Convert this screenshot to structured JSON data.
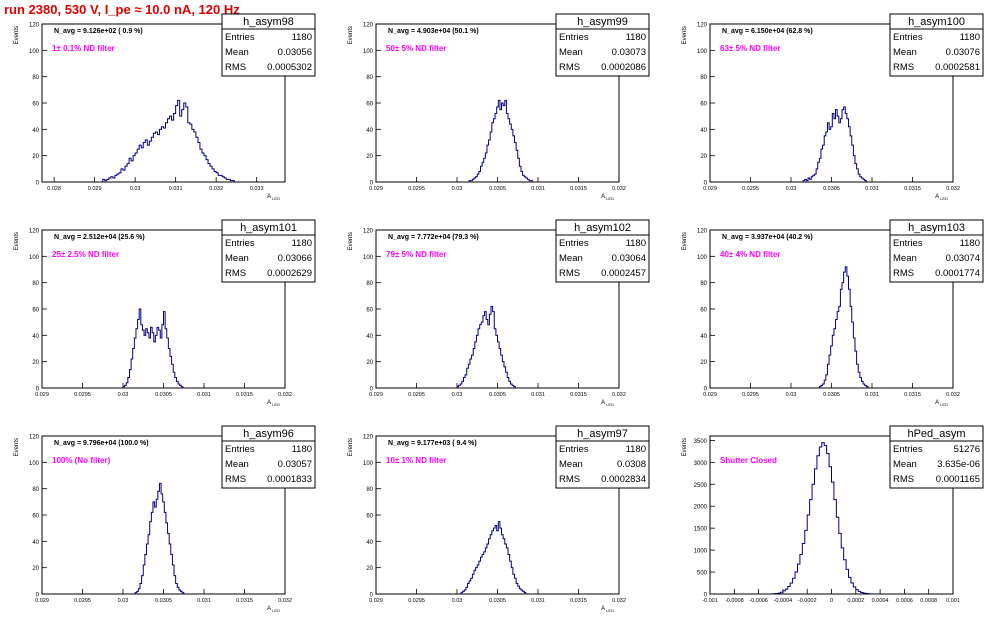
{
  "run_title": "run 2380,   530 V, I_pe ≈ 10.0 nA, 120 Hz",
  "chart_data": [
    {
      "type": "bar",
      "hist_name": "h_asym98",
      "stats": {
        "entries_label": "Entries",
        "entries": "1180",
        "mean_label": "Mean",
        "mean": "0.03056",
        "rms_label": "RMS",
        "rms": "0.0005302"
      },
      "navg": "N_avg = 9.126e+02 ( 0.9 %)",
      "filter": "1± 0.1% ND filter",
      "xlabel": "A_LED",
      "ylabel": "Events",
      "xlim": [
        0.0277,
        0.0337
      ],
      "ylim": [
        0,
        120
      ],
      "xticks": [
        0.028,
        0.029,
        0.03,
        0.031,
        0.032,
        0.033
      ],
      "xtick_labels": [
        "0.028",
        "0.029",
        "0.03",
        "0.031",
        "0.032",
        "0.033"
      ],
      "yticks": [
        0,
        20,
        40,
        60,
        80,
        100,
        120
      ],
      "bins": {
        "lo": 0.0292,
        "width": 5e-05,
        "values": [
          2,
          1,
          2,
          3,
          4,
          3,
          5,
          6,
          7,
          10,
          9,
          12,
          14,
          18,
          16,
          20,
          22,
          25,
          28,
          26,
          30,
          32,
          28,
          31,
          34,
          37,
          38,
          36,
          40,
          42,
          41,
          45,
          48,
          50,
          47,
          52,
          58,
          62,
          50,
          55,
          60,
          57,
          45,
          44,
          40,
          38,
          34,
          30,
          25,
          22,
          20,
          17,
          14,
          12,
          10,
          8,
          7,
          5,
          5,
          4,
          3,
          2,
          2,
          1,
          1
        ]
      }
    },
    {
      "type": "bar",
      "hist_name": "h_asym99",
      "stats": {
        "entries_label": "Entries",
        "entries": "1180",
        "mean_label": "Mean",
        "mean": "0.03073",
        "rms_label": "RMS",
        "rms": "0.0002086"
      },
      "navg": "N_avg = 4.903e+04 (50.1 %)",
      "filter": "50± 5% ND filter",
      "xlabel": "A_LED",
      "ylabel": "Events",
      "xlim": [
        0.029,
        0.032
      ],
      "ylim": [
        0,
        120
      ],
      "xticks": [
        0.029,
        0.0295,
        0.03,
        0.0305,
        0.031,
        0.0315,
        0.032
      ],
      "xtick_labels": [
        "0.029",
        "0.0295",
        "0.03",
        "0.0305",
        "0.031",
        "0.0315",
        "0.032"
      ],
      "yticks": [
        0,
        20,
        40,
        60,
        80,
        100,
        120
      ],
      "bins": {
        "lo": 0.03015,
        "width": 2e-05,
        "values": [
          1,
          1,
          2,
          3,
          4,
          6,
          8,
          12,
          15,
          18,
          22,
          28,
          32,
          38,
          45,
          48,
          52,
          57,
          62,
          55,
          60,
          58,
          62,
          52,
          48,
          44,
          40,
          35,
          30,
          24,
          18,
          12,
          8,
          5,
          4,
          3,
          2,
          1,
          1
        ]
      }
    },
    {
      "type": "bar",
      "hist_name": "h_asym100",
      "stats": {
        "entries_label": "Entries",
        "entries": "1180",
        "mean_label": "Mean",
        "mean": "0.03076",
        "rms_label": "RMS",
        "rms": "0.0002581"
      },
      "navg": "N_avg = 6.150e+04 (62.8 %)",
      "filter": "63± 5% ND filter",
      "xlabel": "A_LED",
      "ylabel": "Events",
      "xlim": [
        0.029,
        0.032
      ],
      "ylim": [
        0,
        120
      ],
      "xticks": [
        0.029,
        0.0295,
        0.03,
        0.0305,
        0.031,
        0.0315,
        0.032
      ],
      "xtick_labels": [
        "0.029",
        "0.0295",
        "0.03",
        "0.0305",
        "0.031",
        "0.0315",
        "0.032"
      ],
      "yticks": [
        0,
        20,
        40,
        60,
        80,
        100,
        120
      ],
      "bins": {
        "lo": 0.03015,
        "width": 2e-05,
        "values": [
          1,
          2,
          1,
          3,
          2,
          4,
          5,
          6,
          10,
          15,
          18,
          25,
          28,
          35,
          38,
          45,
          40,
          42,
          52,
          48,
          55,
          50,
          45,
          48,
          55,
          57,
          52,
          48,
          42,
          35,
          28,
          20,
          14,
          10,
          6,
          4,
          3,
          2,
          1
        ]
      }
    },
    {
      "type": "bar",
      "hist_name": "h_asym101",
      "stats": {
        "entries_label": "Entries",
        "entries": "1180",
        "mean_label": "Mean",
        "mean": "0.03066",
        "rms_label": "RMS",
        "rms": "0.0002629"
      },
      "navg": "N_avg = 2.512e+04 (25.6 %)",
      "filter": "25± 2.5% ND filter",
      "xlabel": "A_LED",
      "ylabel": "Events",
      "xlim": [
        0.029,
        0.032
      ],
      "ylim": [
        0,
        120
      ],
      "xticks": [
        0.029,
        0.0295,
        0.03,
        0.0305,
        0.031,
        0.0315,
        0.032
      ],
      "xtick_labels": [
        "0.029",
        "0.0295",
        "0.03",
        "0.0305",
        "0.031",
        "0.0315",
        "0.032"
      ],
      "yticks": [
        0,
        20,
        40,
        60,
        80,
        100,
        120
      ],
      "bins": {
        "lo": 0.03,
        "width": 2e-05,
        "values": [
          1,
          2,
          4,
          8,
          14,
          22,
          30,
          38,
          45,
          52,
          60,
          48,
          44,
          40,
          45,
          42,
          38,
          46,
          42,
          35,
          40,
          46,
          44,
          38,
          48,
          58,
          45,
          38,
          30,
          24,
          18,
          12,
          8,
          5,
          3,
          2,
          1
        ]
      }
    },
    {
      "type": "bar",
      "hist_name": "h_asym102",
      "stats": {
        "entries_label": "Entries",
        "entries": "1180",
        "mean_label": "Mean",
        "mean": "0.03064",
        "rms_label": "RMS",
        "rms": "0.0002457"
      },
      "navg": "N_avg = 7.772e+04 (79.3 %)",
      "filter": "79± 5% ND filter",
      "xlabel": "A_LED",
      "ylabel": "Events",
      "xlim": [
        0.029,
        0.032
      ],
      "ylim": [
        0,
        120
      ],
      "xticks": [
        0.029,
        0.0295,
        0.03,
        0.0305,
        0.031,
        0.0315,
        0.032
      ],
      "xtick_labels": [
        "0.029",
        "0.0295",
        "0.03",
        "0.0305",
        "0.031",
        "0.0315",
        "0.032"
      ],
      "yticks": [
        0,
        20,
        40,
        60,
        80,
        100,
        120
      ],
      "bins": {
        "lo": 0.03,
        "width": 2e-05,
        "values": [
          1,
          2,
          3,
          5,
          8,
          10,
          15,
          18,
          22,
          25,
          30,
          35,
          40,
          45,
          48,
          50,
          55,
          58,
          52,
          48,
          56,
          62,
          58,
          45,
          40,
          35,
          30,
          25,
          20,
          16,
          12,
          8,
          5,
          3,
          2,
          1
        ]
      }
    },
    {
      "type": "bar",
      "hist_name": "h_asym103",
      "stats": {
        "entries_label": "Entries",
        "entries": "1180",
        "mean_label": "Mean",
        "mean": "0.03074",
        "rms_label": "RMS",
        "rms": "0.0001774"
      },
      "navg": "N_avg = 3.937e+04 (40.2 %)",
      "filter": "40± 4% ND filter",
      "xlabel": "A_LED",
      "ylabel": "Events",
      "xlim": [
        0.029,
        0.032
      ],
      "ylim": [
        0,
        120
      ],
      "xticks": [
        0.029,
        0.0295,
        0.03,
        0.0305,
        0.031,
        0.0315,
        0.032
      ],
      "xtick_labels": [
        "0.029",
        "0.0295",
        "0.03",
        "0.0305",
        "0.031",
        "0.0315",
        "0.032"
      ],
      "yticks": [
        0,
        20,
        40,
        60,
        80,
        100,
        120
      ],
      "bins": {
        "lo": 0.03035,
        "width": 2e-05,
        "values": [
          1,
          2,
          3,
          6,
          10,
          18,
          25,
          32,
          40,
          45,
          52,
          58,
          62,
          75,
          80,
          88,
          92,
          85,
          75,
          62,
          50,
          38,
          28,
          18,
          12,
          8,
          5,
          3,
          2,
          1
        ]
      }
    },
    {
      "type": "bar",
      "hist_name": "h_asym96",
      "stats": {
        "entries_label": "Entries",
        "entries": "1180",
        "mean_label": "Mean",
        "mean": "0.03057",
        "rms_label": "RMS",
        "rms": "0.0001833"
      },
      "navg": "N_avg = 9.796e+04 (100.0 %)",
      "filter": "100% (No filter)",
      "xlabel": "A_LED",
      "ylabel": "Events",
      "xlim": [
        0.029,
        0.032
      ],
      "ylim": [
        0,
        120
      ],
      "xticks": [
        0.029,
        0.0295,
        0.03,
        0.0305,
        0.031,
        0.0315,
        0.032
      ],
      "xtick_labels": [
        "0.029",
        "0.0295",
        "0.03",
        "0.0305",
        "0.031",
        "0.0315",
        "0.032"
      ],
      "yticks": [
        0,
        20,
        40,
        60,
        80,
        100,
        120
      ],
      "bins": {
        "lo": 0.03015,
        "width": 2e-05,
        "values": [
          1,
          2,
          4,
          8,
          14,
          22,
          30,
          38,
          45,
          55,
          62,
          70,
          66,
          72,
          78,
          84,
          76,
          70,
          62,
          54,
          46,
          38,
          30,
          22,
          14,
          8,
          5,
          3,
          2,
          1
        ]
      }
    },
    {
      "type": "bar",
      "hist_name": "h_asym97",
      "stats": {
        "entries_label": "Entries",
        "entries": "1180",
        "mean_label": "Mean",
        "mean": "0.0308",
        "rms_label": "RMS",
        "rms": "0.0002834"
      },
      "navg": "N_avg = 9.177e+03 ( 9.4 %)",
      "filter": "10± 1% ND filter",
      "xlabel": "A_LED",
      "ylabel": "Events",
      "xlim": [
        0.029,
        0.032
      ],
      "ylim": [
        0,
        120
      ],
      "xticks": [
        0.029,
        0.0295,
        0.03,
        0.0305,
        0.031,
        0.0315,
        0.032
      ],
      "xtick_labels": [
        "0.029",
        "0.0295",
        "0.03",
        "0.0305",
        "0.031",
        "0.0315",
        "0.032"
      ],
      "yticks": [
        0,
        20,
        40,
        60,
        80,
        100,
        120
      ],
      "bins": {
        "lo": 0.03005,
        "width": 2e-05,
        "values": [
          1,
          2,
          3,
          5,
          8,
          10,
          12,
          15,
          18,
          20,
          22,
          25,
          28,
          30,
          32,
          35,
          38,
          42,
          45,
          48,
          50,
          52,
          48,
          55,
          50,
          45,
          42,
          38,
          35,
          30,
          25,
          20,
          15,
          12,
          8,
          6,
          4,
          3,
          2,
          1
        ]
      }
    },
    {
      "type": "bar",
      "hist_name": "hPed_asym",
      "stats": {
        "entries_label": "Entries",
        "entries": "51276",
        "mean_label": "Mean",
        "mean": "3.635e-06",
        "rms_label": "RMS",
        "rms": "0.0001165"
      },
      "navg": "",
      "filter": "Shutter Closed",
      "xlabel": "",
      "ylabel": "Events",
      "xlim": [
        -0.001,
        0.001
      ],
      "ylim": [
        0,
        3600
      ],
      "xticks": [
        -0.001,
        -0.0008,
        -0.0006,
        -0.0004,
        -0.0002,
        0,
        0.0002,
        0.0004,
        0.0006,
        0.0008,
        0.001
      ],
      "xtick_labels": [
        "-0.001",
        "-0.0008",
        "-0.0006",
        "-0.0004",
        "-0.0002",
        "0",
        "0.0002",
        "0.0004",
        "0.0006",
        "0.0008",
        "0.001"
      ],
      "yticks": [
        0,
        500,
        1000,
        1500,
        2000,
        2500,
        3000,
        3500
      ],
      "bins": {
        "lo": -0.0005,
        "width": 2e-05,
        "values": [
          2,
          5,
          10,
          20,
          40,
          70,
          110,
          170,
          250,
          360,
          500,
          680,
          900,
          1150,
          1450,
          1800,
          2150,
          2500,
          2850,
          3150,
          3350,
          3450,
          3380,
          3200,
          2900,
          2550,
          2150,
          1750,
          1380,
          1050,
          780,
          560,
          380,
          250,
          160,
          100,
          60,
          35,
          20,
          10,
          5,
          2
        ]
      }
    }
  ]
}
